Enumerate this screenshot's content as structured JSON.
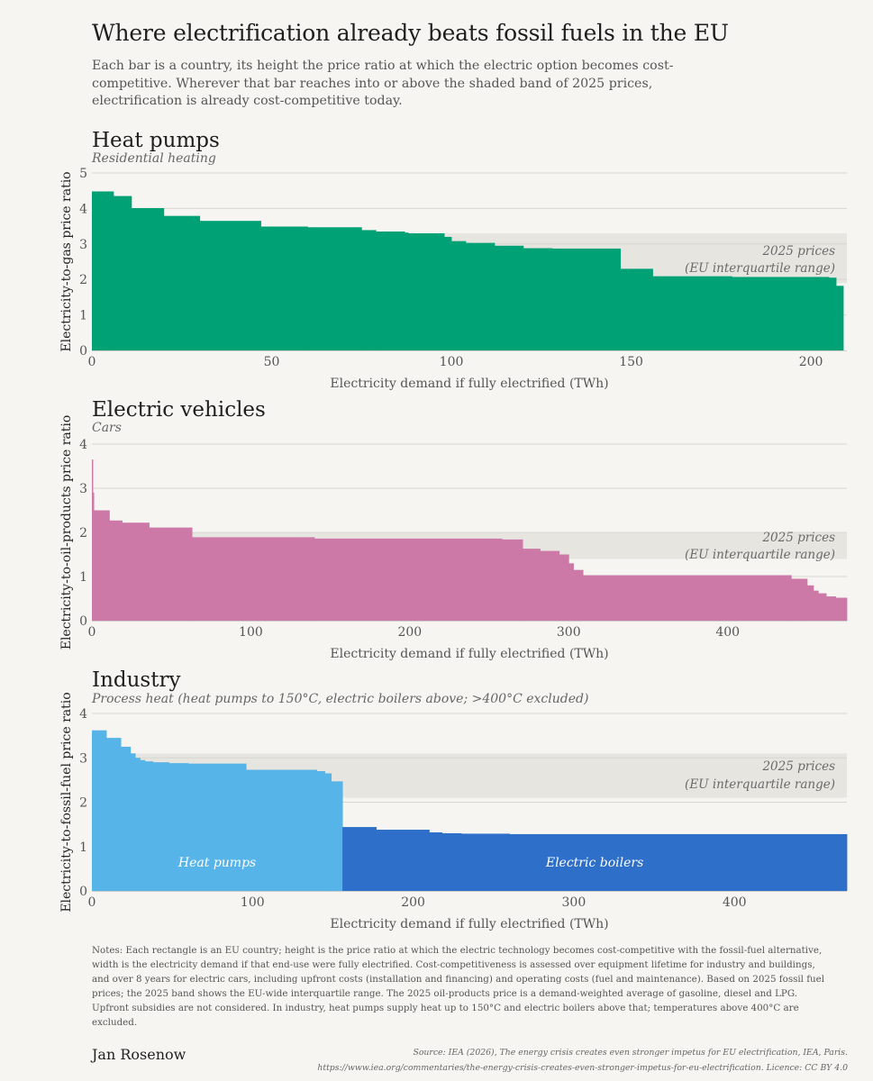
{
  "page": {
    "title": "Where electrification already beats fossil fuels in the EU",
    "subtitle": "Each bar is a country, its height the price ratio at which the electric option becomes cost-competitive. Wherever that bar reaches into or above the shaded band of 2025 prices, electrification is already cost-competitive today.",
    "notes": "Notes: Each rectangle is an EU country; height is the price ratio at which the electric technology becomes cost-competitive with the fossil-fuel alternative, width is the electricity demand if that end-use were fully electrified. Cost-competitiveness is assessed over equipment lifetime for industry and buildings, and over 8 years for electric cars, including upfront costs (installation and financing) and operating costs (fuel and maintenance). Based on 2025 fossil fuel prices; the 2025 band shows the EU-wide interquartile range. The 2025 oil-products price is a demand-weighted average of gasoline, diesel and LPG. Upfront subsidies are not considered. In industry, heat pumps supply heat up to 150°C and electric boilers above that; temperatures above 400°C are excluded.",
    "author": "Jan Rosenow",
    "source_line1": "Source: IEA (2026), The energy crisis creates even stronger impetus for EU electrification, IEA, Paris.",
    "source_line2": "https://www.iea.org/commentaries/the-energy-crisis-creates-even-stronger-impetus-for-eu-electrification. Licence: CC BY 4.0"
  },
  "chart_data": [
    {
      "type": "area",
      "title": "Heat pumps",
      "subtitle": "Residential heating",
      "xlabel": "Electricity demand if fully electrified (TWh)",
      "ylabel": "Electricity-to-gas price ratio",
      "xlim": [
        0,
        210
      ],
      "ylim": [
        0,
        5
      ],
      "xticks": [
        0,
        50,
        100,
        150,
        200
      ],
      "yticks": [
        0,
        1,
        2,
        3,
        4,
        5
      ],
      "grid": true,
      "color": "#00a175",
      "band": {
        "low": 1.9,
        "high": 3.3,
        "label_line1": "2025 prices",
        "label_line2": "(EU interquartile range)"
      },
      "series": [
        {
          "x_start": [
            0,
            6,
            11,
            20,
            30,
            47,
            60,
            75,
            79,
            87,
            88,
            98,
            100,
            104,
            112,
            120,
            128,
            147,
            156,
            178,
            205,
            207
          ],
          "x_end": [
            6,
            11,
            20,
            30,
            47,
            60,
            75,
            79,
            87,
            88,
            98,
            100,
            104,
            112,
            120,
            128,
            147,
            156,
            178,
            205,
            207,
            209
          ],
          "values": [
            4.48,
            4.35,
            4.01,
            3.79,
            3.65,
            3.49,
            3.47,
            3.39,
            3.35,
            3.32,
            3.3,
            3.2,
            3.08,
            3.03,
            2.95,
            2.88,
            2.87,
            2.3,
            2.09,
            2.07,
            2.05,
            1.82
          ]
        }
      ]
    },
    {
      "type": "area",
      "title": "Electric vehicles",
      "subtitle": "Cars",
      "xlabel": "Electricity demand if fully electrified (TWh)",
      "ylabel": "Electricity-to-oil-products price ratio",
      "xlim": [
        0,
        475
      ],
      "ylim": [
        0,
        4
      ],
      "xticks": [
        0,
        100,
        200,
        300,
        400
      ],
      "yticks": [
        0,
        1,
        2,
        3,
        4
      ],
      "grid": true,
      "color": "#cc79a7",
      "band": {
        "low": 1.4,
        "high": 2.0,
        "label_line1": "2025 prices",
        "label_line2": "(EU interquartile range)"
      },
      "series": [
        {
          "x_start": [
            0,
            0.6,
            1.2,
            11,
            19,
            36,
            63,
            140,
            258,
            271,
            282,
            294,
            300,
            303,
            309,
            440,
            450,
            454,
            457,
            462,
            468
          ],
          "x_end": [
            0.6,
            1.2,
            11,
            19,
            36,
            63,
            140,
            258,
            271,
            282,
            294,
            300,
            303,
            309,
            440,
            450,
            454,
            457,
            462,
            468,
            475
          ],
          "values": [
            3.65,
            2.9,
            2.5,
            2.27,
            2.22,
            2.11,
            1.89,
            1.86,
            1.84,
            1.63,
            1.58,
            1.5,
            1.3,
            1.15,
            1.03,
            0.95,
            0.8,
            0.68,
            0.62,
            0.55,
            0.52
          ]
        }
      ]
    },
    {
      "type": "area",
      "title": "Industry",
      "subtitle": "Process heat (heat pumps to 150°C, electric boilers above; >400°C excluded)",
      "xlabel": "Electricity demand if fully electrified (TWh)",
      "ylabel": "Electricity-to-fossil-fuel price ratio",
      "xlim": [
        0,
        470
      ],
      "ylim": [
        0,
        4
      ],
      "xticks": [
        0,
        100,
        200,
        300,
        400
      ],
      "yticks": [
        0,
        1,
        2,
        3,
        4
      ],
      "grid": true,
      "band": {
        "low": 2.1,
        "high": 3.1,
        "label_line1": "2025 prices",
        "label_line2": "(EU interquartile range)"
      },
      "series": [
        {
          "name": "Heat pumps",
          "color": "#56b4e9",
          "x_start": [
            0,
            9,
            18,
            24,
            27,
            30,
            33,
            38,
            48,
            60,
            96,
            140,
            145,
            149
          ],
          "x_end": [
            9,
            18,
            24,
            27,
            30,
            33,
            38,
            48,
            60,
            96,
            140,
            145,
            149,
            156
          ],
          "values": [
            3.62,
            3.45,
            3.25,
            3.1,
            3.0,
            2.95,
            2.92,
            2.9,
            2.88,
            2.87,
            2.73,
            2.7,
            2.65,
            2.47
          ]
        },
        {
          "name": "Electric boilers",
          "color": "#2d6fc9",
          "x_start": [
            156,
            177,
            210,
            218,
            230,
            260,
            470
          ],
          "x_end": [
            177,
            210,
            218,
            230,
            260,
            470,
            470
          ],
          "values": [
            1.44,
            1.38,
            1.32,
            1.3,
            1.29,
            1.28,
            1.28
          ]
        }
      ]
    }
  ]
}
